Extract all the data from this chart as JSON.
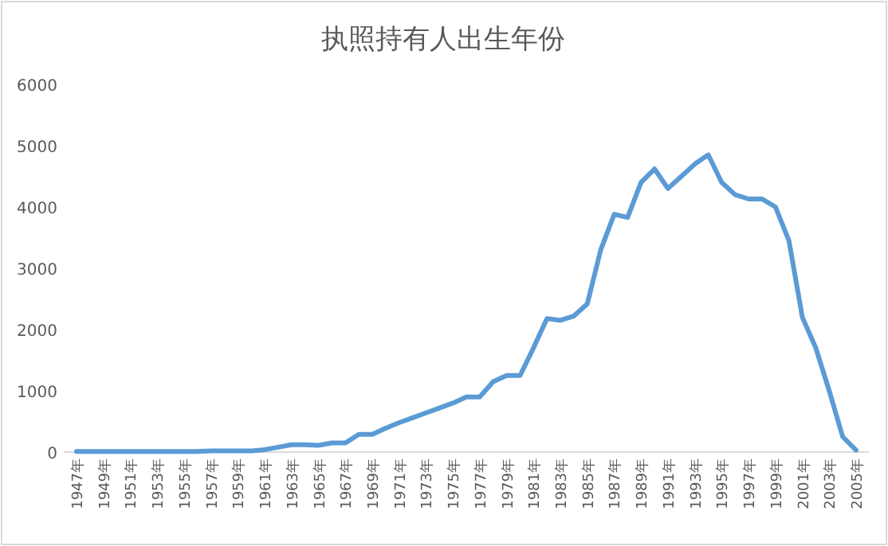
{
  "chart_data": {
    "type": "line",
    "title": "执照持有人出生年份",
    "categories": [
      "1947年",
      null,
      "1949年",
      null,
      "1951年",
      null,
      "1953年",
      null,
      "1955年",
      null,
      "1957年",
      null,
      "1959年",
      null,
      "1961年",
      null,
      "1963年",
      null,
      "1965年",
      null,
      "1967年",
      null,
      "1969年",
      null,
      "1971年",
      null,
      "1973年",
      null,
      "1975年",
      null,
      "1977年",
      null,
      "1979年",
      null,
      "1981年",
      null,
      "1983年",
      null,
      "1985年",
      null,
      "1987年",
      null,
      "1989年",
      null,
      "1991年",
      null,
      "1993年",
      null,
      "1995年",
      null,
      "1997年",
      null,
      "1999年",
      null,
      "2001年",
      null,
      "2003年",
      null,
      "2005年"
    ],
    "series": [
      {
        "color": "#5b9bd5",
        "values": [
          10,
          10,
          10,
          10,
          10,
          10,
          10,
          10,
          10,
          10,
          20,
          20,
          20,
          20,
          40,
          80,
          120,
          120,
          110,
          150,
          150,
          290,
          290,
          390,
          480,
          560,
          640,
          720,
          800,
          900,
          900,
          1150,
          1250,
          1250,
          1700,
          2180,
          2150,
          2220,
          2420,
          3300,
          3880,
          3830,
          4400,
          4620,
          4300,
          4500,
          4700,
          4850,
          4400,
          4200,
          4130,
          4130,
          4000,
          3450,
          2200,
          1700,
          1000,
          250,
          30
        ]
      }
    ],
    "ylim": [
      0,
      6000
    ],
    "yticks": [
      0,
      1000,
      2000,
      3000,
      4000,
      5000,
      6000
    ],
    "grid": false,
    "marker": "none",
    "line_style": "solid"
  }
}
